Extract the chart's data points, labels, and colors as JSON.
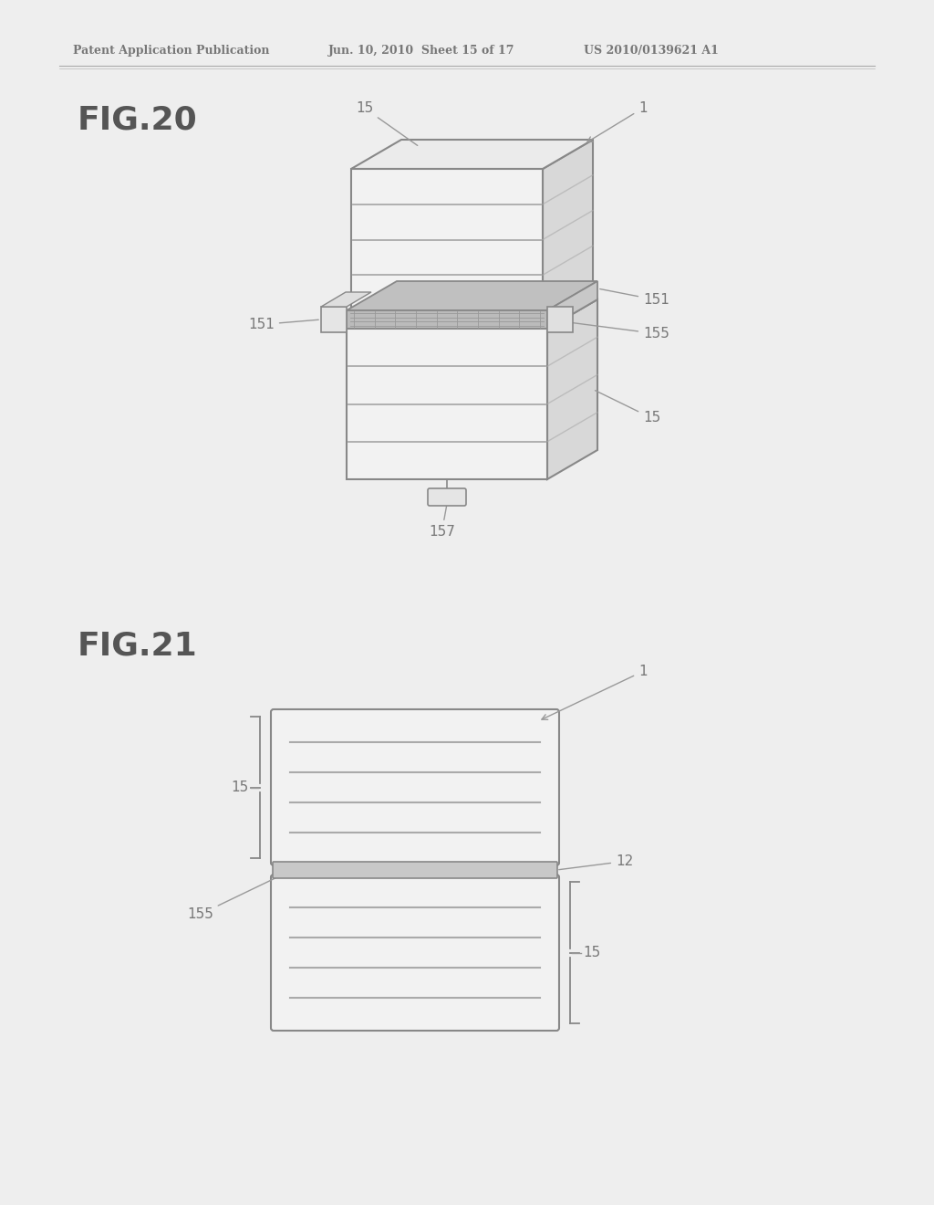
{
  "bg_color": "#eeeeee",
  "header_text": "Patent Application Publication",
  "header_date": "Jun. 10, 2010  Sheet 15 of 17",
  "header_patent": "US 2010/0139621 A1",
  "fig20_label": "FIG.20",
  "fig21_label": "FIG.21",
  "line_color": "#aaaaaa",
  "fill_color": "#f8f8f8",
  "gray_fill": "#c8c8c8",
  "dark_line": "#888888",
  "text_color": "#777777"
}
